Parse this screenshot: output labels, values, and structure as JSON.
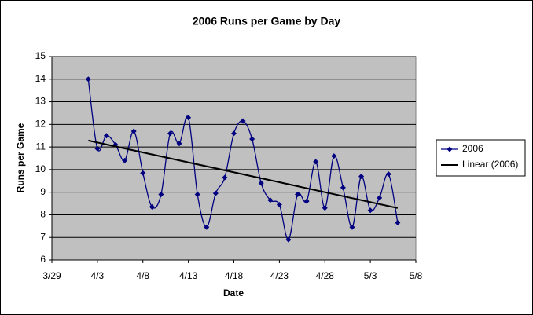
{
  "chart_data": {
    "type": "line",
    "title": "2006 Runs per Game by Day",
    "x_label": "Date",
    "y_label": "Runs per Game",
    "x": [
      "4/2",
      "4/3",
      "4/4",
      "4/5",
      "4/6",
      "4/7",
      "4/8",
      "4/9",
      "4/10",
      "4/11",
      "4/12",
      "4/13",
      "4/14",
      "4/15",
      "4/16",
      "4/17",
      "4/18",
      "4/19",
      "4/20",
      "4/21",
      "4/22",
      "4/23",
      "4/24",
      "4/25",
      "4/26",
      "4/27",
      "4/28",
      "4/29",
      "4/30",
      "5/1",
      "5/2",
      "5/3",
      "5/4",
      "5/5",
      "5/6"
    ],
    "series": [
      {
        "name": "2006",
        "color": "#000080",
        "values": [
          14.0,
          10.93,
          11.5,
          11.1,
          10.4,
          11.7,
          9.85,
          8.35,
          8.9,
          11.6,
          11.15,
          12.3,
          8.9,
          7.45,
          8.95,
          9.65,
          11.6,
          12.15,
          11.35,
          9.4,
          8.65,
          8.45,
          6.9,
          8.9,
          8.6,
          10.35,
          8.3,
          10.6,
          9.2,
          7.45,
          9.7,
          8.2,
          8.75,
          9.8,
          7.65
        ]
      }
    ],
    "trendline": {
      "name": "Linear (2006)",
      "color": "#000000",
      "fit": "linear"
    },
    "xlim": [
      "3/29",
      "5/8"
    ],
    "xticks": [
      "3/29",
      "4/3",
      "4/8",
      "4/13",
      "4/18",
      "4/23",
      "4/28",
      "5/3",
      "5/8"
    ],
    "ylim": [
      6,
      15
    ],
    "yticks": [
      6,
      7,
      8,
      9,
      10,
      11,
      12,
      13,
      14,
      15
    ],
    "grid": true,
    "legend": "right",
    "plot_background": "#c0c0c0"
  }
}
